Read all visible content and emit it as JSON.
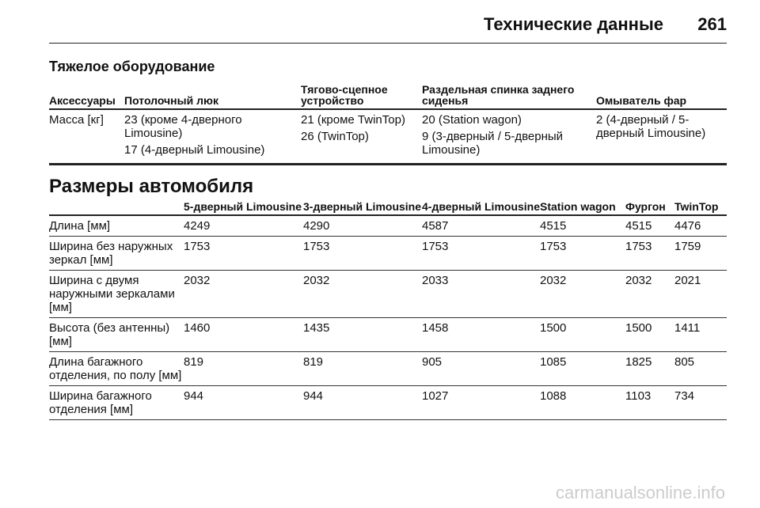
{
  "header": {
    "title": "Технические данные",
    "page": "261"
  },
  "heavy_equipment": {
    "title": "Тяжелое оборудование",
    "headers": [
      "Аксессуары",
      "Потолочный люк",
      "Тягово-сцепное устройство",
      "Раздельная спинка заднего сиденья",
      "Омыватель фар"
    ],
    "rows": [
      [
        [
          "Масса [кг]"
        ],
        [
          "23 (кроме 4-дверного Limousine)",
          "17 (4-дверный Limousine)"
        ],
        [
          "21 (кроме TwinTop)",
          "26 (TwinTop)"
        ],
        [
          "20 (Station wagon)",
          "9 (3-дверный / 5-дверный Limousine)"
        ],
        [
          "2 (4-дверный / 5-дверный Limousine)"
        ]
      ]
    ]
  },
  "dimensions": {
    "title": "Размеры автомобиля",
    "headers": [
      "5-дверный Limousine",
      "3-дверный Limousine",
      "4-дверный Limousine",
      "Station wagon",
      "Фургон",
      "TwinTop"
    ],
    "rows": [
      [
        "Длина [мм]",
        4249,
        4290,
        4587,
        4515,
        4515,
        4476
      ],
      [
        "Ширина без наружных зеркал [мм]",
        1753,
        1753,
        1753,
        1753,
        1753,
        1759
      ],
      [
        "Ширина с двумя наружными зеркалами [мм]",
        2032,
        2032,
        2033,
        2032,
        2032,
        2021
      ],
      [
        "Высота (без антенны) [мм]",
        1460,
        1435,
        1458,
        1500,
        1500,
        1411
      ],
      [
        "Длина багажного отделения, по полу [мм]",
        819,
        819,
        905,
        1085,
        1825,
        805
      ],
      [
        "Ширина багажного отделения [мм]",
        944,
        944,
        1027,
        1088,
        1103,
        734
      ]
    ]
  },
  "watermark": "carmanualsonline.info"
}
